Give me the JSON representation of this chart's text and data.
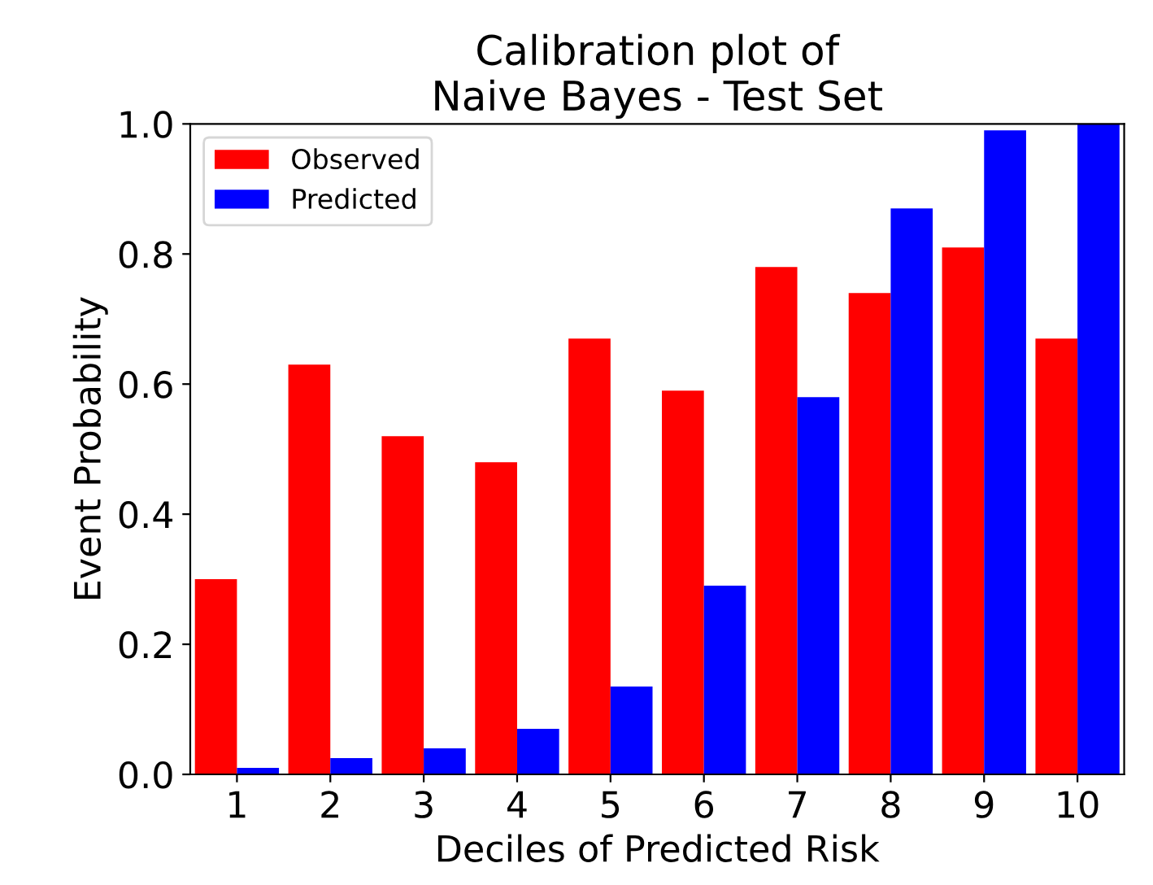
{
  "chart_data": {
    "type": "bar",
    "title": "Calibration plot of\nNaive Bayes - Test Set",
    "xlabel": "Deciles of Predicted Risk",
    "ylabel": "Event Probability",
    "categories": [
      "1",
      "2",
      "3",
      "4",
      "5",
      "6",
      "7",
      "8",
      "9",
      "10"
    ],
    "series": [
      {
        "name": "Observed",
        "color": "#ff0000",
        "values": [
          0.3,
          0.63,
          0.52,
          0.48,
          0.67,
          0.59,
          0.78,
          0.74,
          0.81,
          0.67
        ]
      },
      {
        "name": "Predicted",
        "color": "#0000ff",
        "values": [
          0.01,
          0.025,
          0.04,
          0.07,
          0.135,
          0.29,
          0.58,
          0.87,
          0.99,
          1.0
        ]
      }
    ],
    "ylim": [
      0,
      1
    ],
    "yticks": [
      {
        "value": 0,
        "label": "0.0"
      },
      0.2,
      0.4,
      0.6,
      0.8,
      {
        "value": 1,
        "label": "1.0"
      }
    ],
    "grid": false,
    "legend": "top left"
  }
}
